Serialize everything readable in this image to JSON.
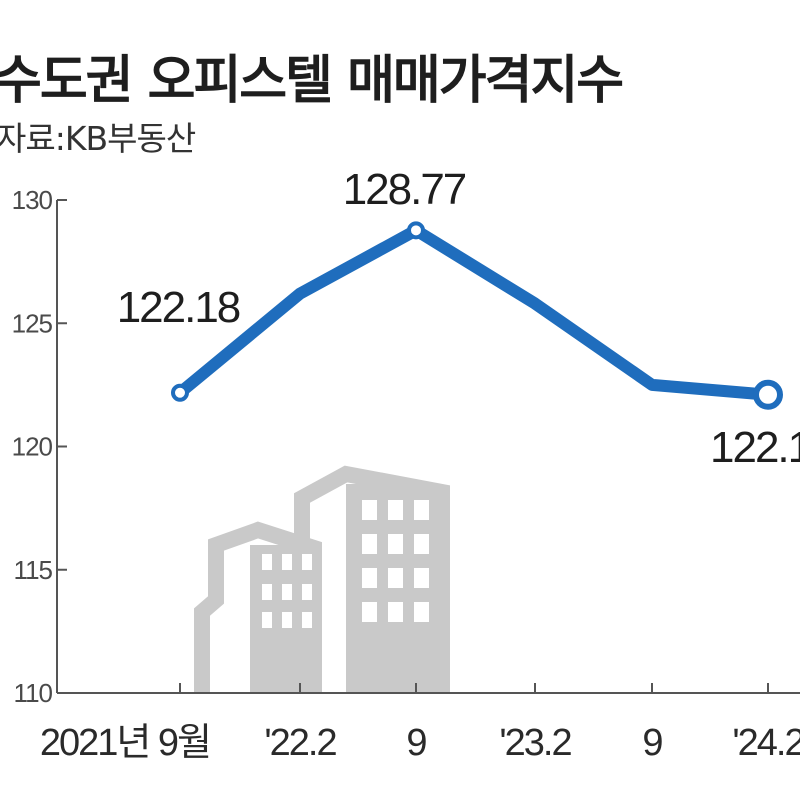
{
  "title": "수도권 오피스텔 매매가격지수",
  "source": "자료:KB부동산",
  "colors": {
    "line": "#1f6dbd",
    "axis": "#555555",
    "building": "#c9c9c9",
    "window": "#ffffff"
  },
  "chart_data": {
    "type": "line",
    "title": "수도권 오피스텔 매매가격지수",
    "xlabel": "",
    "ylabel": "",
    "ylim": [
      110,
      130
    ],
    "yticks": [
      "110",
      "115",
      "120",
      "125",
      "130"
    ],
    "xtick_labels": [
      "2021년 9월",
      "'22.2",
      "9",
      "'23.2",
      "9",
      "'24.2"
    ],
    "x": [
      "2021.09",
      "2022.02",
      "2022.09",
      "2023.02",
      "2023.09",
      "2024.02"
    ],
    "values": [
      122.18,
      126.2,
      128.77,
      125.8,
      122.5,
      122.1
    ],
    "annotations": [
      {
        "index": 0,
        "text": "122.18"
      },
      {
        "index": 2,
        "text": "128.77"
      },
      {
        "index": 5,
        "text": "122.1"
      }
    ],
    "grid": false,
    "illustration": "building-icon"
  }
}
